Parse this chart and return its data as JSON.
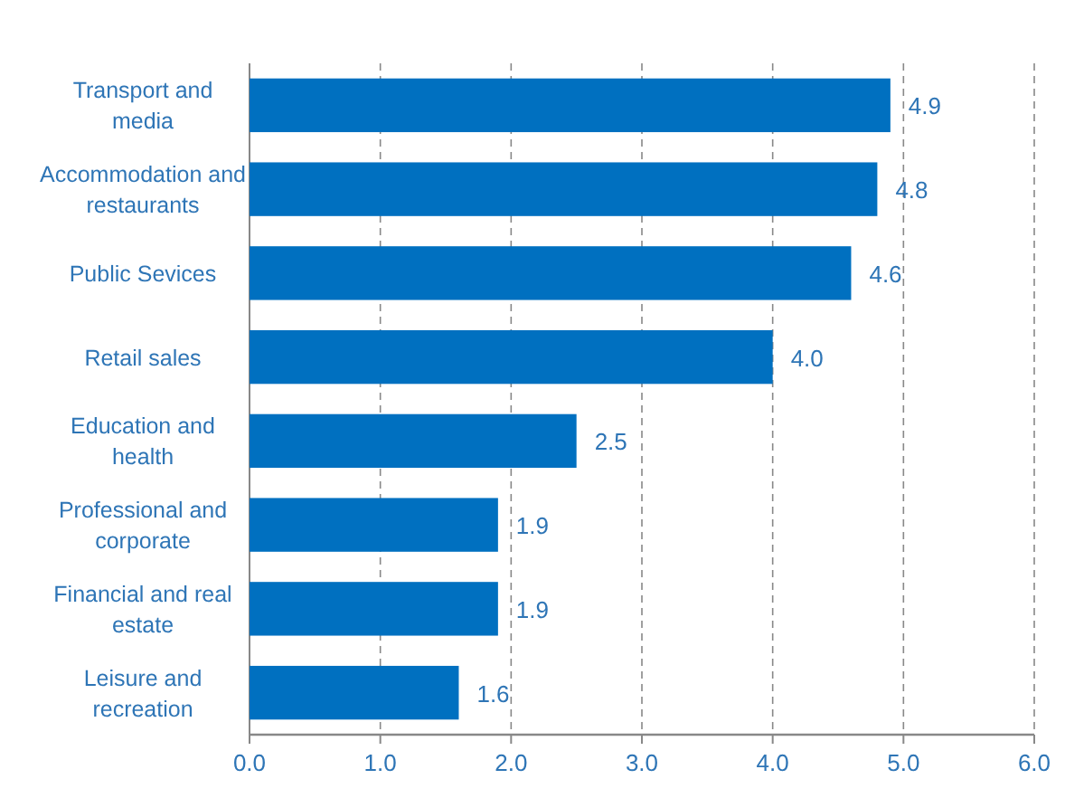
{
  "chart_data": {
    "type": "bar",
    "orientation": "horizontal",
    "categories": [
      "Transport and media",
      "Accommodation and restaurants",
      "Public Sevices",
      "Retail sales",
      "Education and health",
      "Professional and corporate",
      "Financial and real estate",
      "Leisure and recreation"
    ],
    "values": [
      4.9,
      4.8,
      4.6,
      4.0,
      2.5,
      1.9,
      1.9,
      1.6
    ],
    "value_labels": [
      "4.9",
      "4.8",
      "4.6",
      "4.0",
      "2.5",
      "1.9",
      "1.9",
      "1.6"
    ],
    "color": "#0070c0",
    "xlim": [
      0,
      6
    ],
    "xticks": [
      {
        "value": 0,
        "label": "0.0"
      },
      {
        "value": 1,
        "label": "1.0"
      },
      {
        "value": 2,
        "label": "2.0"
      },
      {
        "value": 3,
        "label": "3.0"
      },
      {
        "value": 4,
        "label": "4.0"
      },
      {
        "value": 5,
        "label": "5.0"
      },
      {
        "value": 6,
        "label": "6.0"
      }
    ],
    "grid": "x"
  }
}
